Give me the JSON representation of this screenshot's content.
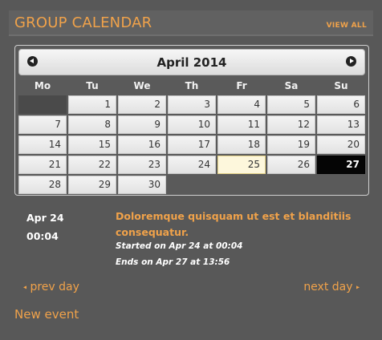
{
  "header": {
    "title": "GROUP CALENDAR",
    "view_all": "VIEW ALL"
  },
  "calendar": {
    "month_label": "April 2014",
    "weekdays": [
      "Mo",
      "Tu",
      "We",
      "Th",
      "Fr",
      "Sa",
      "Su"
    ],
    "leading_blank_days": 1,
    "days_in_month": 30,
    "today": 25,
    "selected": 27
  },
  "event": {
    "date": "Apr 24",
    "time": "00:04",
    "title": "Doloremque quisquam ut est et blanditiis consequatur.",
    "started": "Started on Apr 24 at 00:04",
    "ends": "Ends on Apr 27 at 13:56"
  },
  "nav": {
    "prev_day": "prev day",
    "next_day": "next day",
    "new_event": "New event"
  },
  "colors": {
    "accent": "#f0a24a",
    "background": "#585858",
    "selected_day": "#050505"
  }
}
